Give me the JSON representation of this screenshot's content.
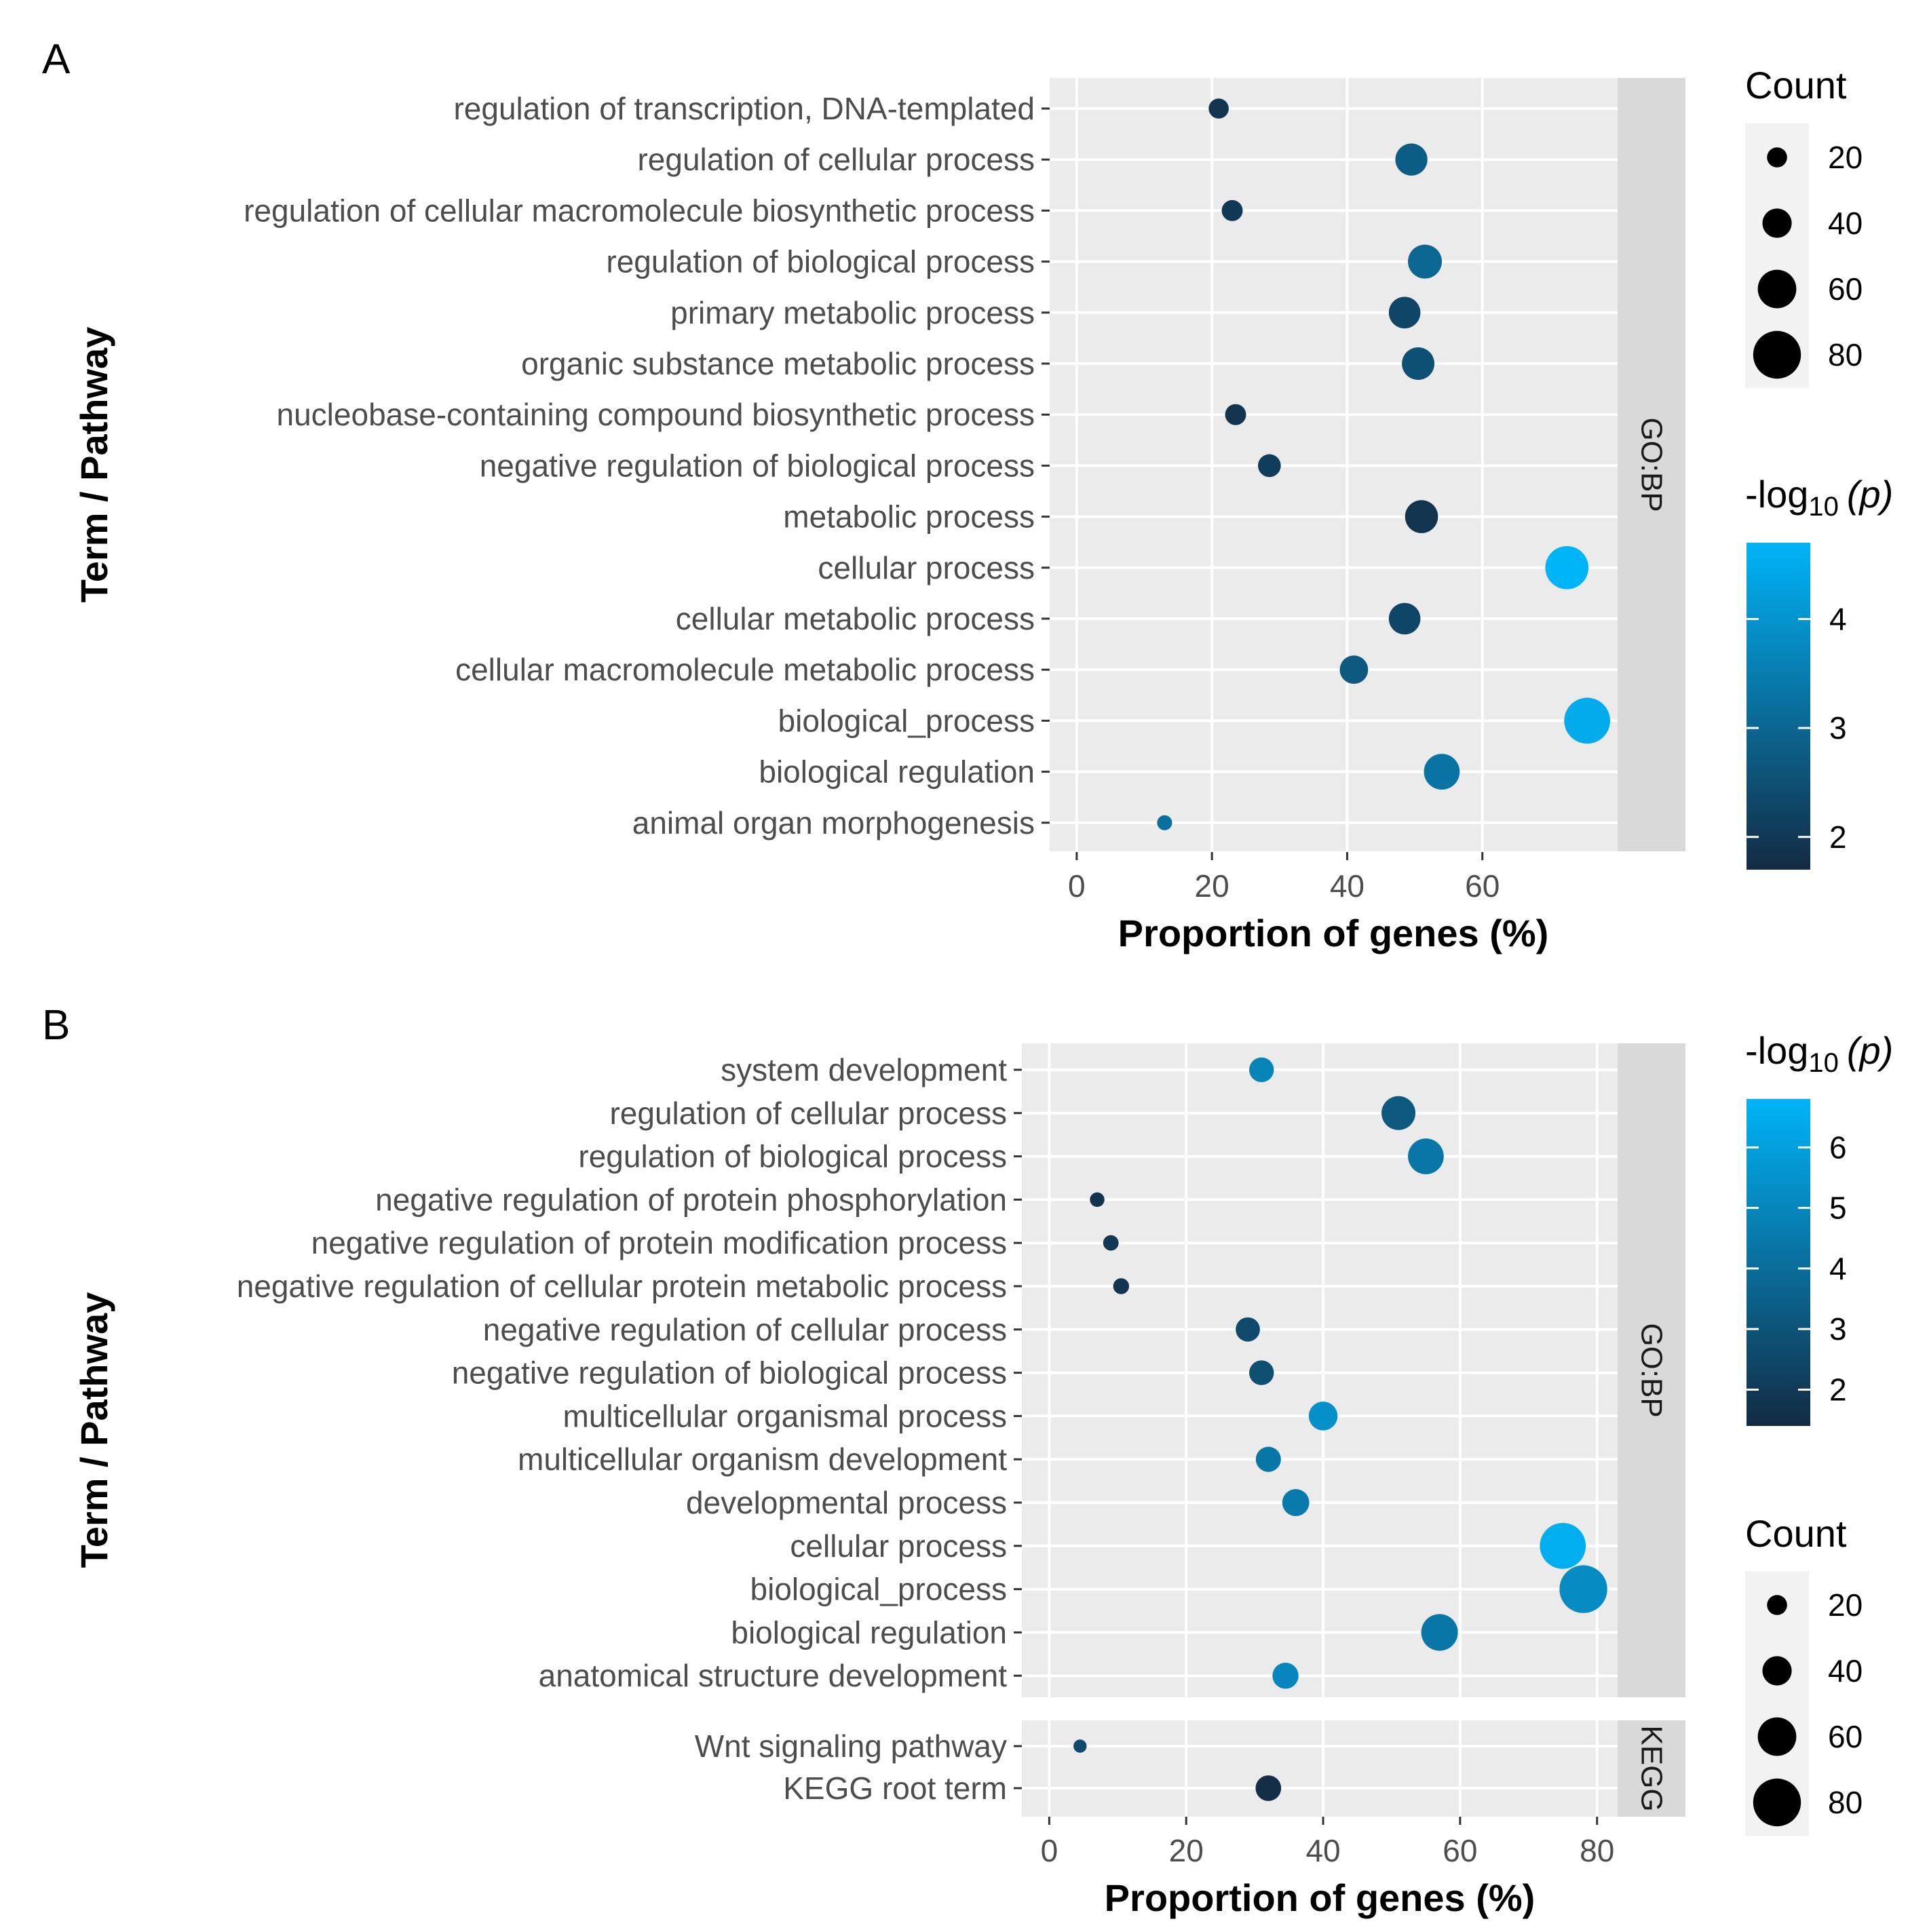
{
  "chart_data": [
    {
      "panel": "A",
      "type": "scatter",
      "xlabel": "Proportion of genes (%)",
      "ylabel": "Term / Pathway",
      "xlim": [
        -4,
        80
      ],
      "xticks": [
        0,
        20,
        40,
        60
      ],
      "facets": [
        {
          "strip": "GO:BP",
          "terms": [
            {
              "label": "regulation of transcription, DNA-templated",
              "x": 21,
              "count": 20,
              "logp": 1.9
            },
            {
              "label": "regulation of cellular process",
              "x": 49.5,
              "count": 46,
              "logp": 2.8
            },
            {
              "label": "regulation of cellular macromolecule biosynthetic process",
              "x": 23,
              "count": 22,
              "logp": 2.0
            },
            {
              "label": "regulation of biological process",
              "x": 51.5,
              "count": 50,
              "logp": 3.0
            },
            {
              "label": "primary metabolic process",
              "x": 48.5,
              "count": 45,
              "logp": 2.3
            },
            {
              "label": "organic substance metabolic process",
              "x": 50.5,
              "count": 47,
              "logp": 2.5
            },
            {
              "label": "nucleobase-containing compound biosynthetic process",
              "x": 23.5,
              "count": 22,
              "logp": 1.9
            },
            {
              "label": "negative regulation of biological process",
              "x": 28.5,
              "count": 26,
              "logp": 2.1
            },
            {
              "label": "metabolic process",
              "x": 51,
              "count": 48,
              "logp": 1.9
            },
            {
              "label": "cellular process",
              "x": 72.5,
              "count": 70,
              "logp": 4.7
            },
            {
              "label": "cellular metabolic process",
              "x": 48.5,
              "count": 45,
              "logp": 2.3
            },
            {
              "label": "cellular macromolecule metabolic process",
              "x": 41,
              "count": 38,
              "logp": 2.7
            },
            {
              "label": "biological_process",
              "x": 75.5,
              "count": 76,
              "logp": 4.5
            },
            {
              "label": "biological regulation",
              "x": 54,
              "count": 54,
              "logp": 3.3
            },
            {
              "label": "animal organ morphogenesis",
              "x": 13,
              "count": 9,
              "logp": 3.2
            }
          ]
        }
      ],
      "legend_size": {
        "title": "Count",
        "breaks": [
          20,
          40,
          60,
          80
        ]
      },
      "legend_color": {
        "title_main": "-log",
        "title_sub": "10",
        "title_var": "(p)",
        "breaks": [
          2,
          3,
          4
        ],
        "range": [
          1.7,
          4.7
        ],
        "low": "#132b43",
        "high": "#00b4f8"
      }
    },
    {
      "panel": "B",
      "type": "scatter",
      "xlabel": "Proportion of genes (%)",
      "ylabel": "Term / Pathway",
      "xlim": [
        -4,
        83
      ],
      "xticks": [
        0,
        20,
        40,
        60,
        80
      ],
      "facets": [
        {
          "strip": "GO:BP",
          "terms": [
            {
              "label": "system development",
              "x": 31,
              "count": 30,
              "logp": 4.9
            },
            {
              "label": "regulation of cellular process",
              "x": 51,
              "count": 50,
              "logp": 3.2
            },
            {
              "label": "regulation of biological process",
              "x": 55,
              "count": 54,
              "logp": 4.4
            },
            {
              "label": "negative regulation of protein phosphorylation",
              "x": 7,
              "count": 8,
              "logp": 1.7
            },
            {
              "label": "negative regulation of protein modification process",
              "x": 9,
              "count": 10,
              "logp": 1.9
            },
            {
              "label": "negative regulation of cellular protein metabolic process",
              "x": 10.5,
              "count": 11,
              "logp": 1.8
            },
            {
              "label": "negative regulation of cellular process",
              "x": 29,
              "count": 29,
              "logp": 2.6
            },
            {
              "label": "negative regulation of biological process",
              "x": 31,
              "count": 30,
              "logp": 2.8
            },
            {
              "label": "multicellular organismal process",
              "x": 40,
              "count": 39,
              "logp": 5.4
            },
            {
              "label": "multicellular organism development",
              "x": 32,
              "count": 31,
              "logp": 4.4
            },
            {
              "label": "developmental process",
              "x": 36,
              "count": 35,
              "logp": 4.5
            },
            {
              "label": "cellular process",
              "x": 75,
              "count": 76,
              "logp": 6.6
            },
            {
              "label": "biological_process",
              "x": 78,
              "count": 80,
              "logp": 5.2
            },
            {
              "label": "biological regulation",
              "x": 57,
              "count": 56,
              "logp": 4.4
            },
            {
              "label": "anatomical structure development",
              "x": 34.5,
              "count": 33,
              "logp": 5.0
            }
          ]
        },
        {
          "strip": "KEGG",
          "terms": [
            {
              "label": "Wnt signaling pathway",
              "x": 4.5,
              "count": 5,
              "logp": 2.6
            },
            {
              "label": "KEGG root term",
              "x": 32,
              "count": 32,
              "logp": 1.5
            }
          ]
        }
      ],
      "legend_color": {
        "title_main": "-log",
        "title_sub": "10",
        "title_var": "(p)",
        "breaks": [
          2,
          3,
          4,
          5,
          6
        ],
        "range": [
          1.4,
          6.8
        ],
        "low": "#132b43",
        "high": "#00b4f8"
      },
      "legend_size": {
        "title": "Count",
        "breaks": [
          20,
          40,
          60,
          80
        ]
      }
    }
  ]
}
